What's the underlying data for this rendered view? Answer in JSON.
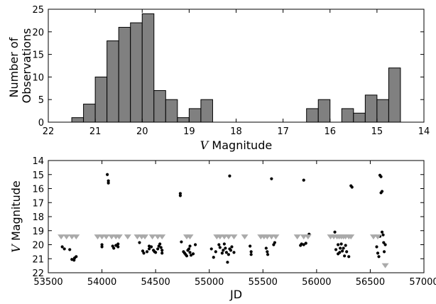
{
  "chart_data": [
    {
      "type": "bar",
      "subtype": "histogram",
      "xlabel": "V Magnitude",
      "xlabel_prefix": "V",
      "xlabel_suffix": " Magnitude",
      "ylabel_lines": [
        "Number of",
        "Observations"
      ],
      "xlim": [
        22,
        14
      ],
      "x_inverted": true,
      "ylim": [
        0,
        25
      ],
      "xticks": [
        22,
        21,
        20,
        19,
        18,
        17,
        16,
        15,
        14
      ],
      "yticks": [
        0,
        5,
        10,
        15,
        20,
        25
      ],
      "bar_color": "#808080",
      "bars": [
        {
          "left": 21.5,
          "right": 21.25,
          "value": 1
        },
        {
          "left": 21.25,
          "right": 21.0,
          "value": 4
        },
        {
          "left": 21.0,
          "right": 20.75,
          "value": 10
        },
        {
          "left": 20.75,
          "right": 20.5,
          "value": 18
        },
        {
          "left": 20.5,
          "right": 20.25,
          "value": 21
        },
        {
          "left": 20.25,
          "right": 20.0,
          "value": 22
        },
        {
          "left": 20.0,
          "right": 19.75,
          "value": 24
        },
        {
          "left": 19.75,
          "right": 19.5,
          "value": 7
        },
        {
          "left": 19.5,
          "right": 19.25,
          "value": 5
        },
        {
          "left": 19.25,
          "right": 19.0,
          "value": 1
        },
        {
          "left": 19.0,
          "right": 18.75,
          "value": 3
        },
        {
          "left": 18.75,
          "right": 18.5,
          "value": 5
        },
        {
          "left": 16.5,
          "right": 16.25,
          "value": 3
        },
        {
          "left": 16.25,
          "right": 16.0,
          "value": 5
        },
        {
          "left": 15.75,
          "right": 15.5,
          "value": 3
        },
        {
          "left": 15.5,
          "right": 15.25,
          "value": 2
        },
        {
          "left": 15.25,
          "right": 15.0,
          "value": 6
        },
        {
          "left": 15.0,
          "right": 14.75,
          "value": 5
        },
        {
          "left": 14.75,
          "right": 14.5,
          "value": 12
        }
      ]
    },
    {
      "type": "scatter",
      "xlabel": "JD",
      "ylabel": "V Magnitude",
      "ylabel_prefix": "V",
      "ylabel_suffix": " Magnitude",
      "xlim": [
        53500,
        57000
      ],
      "ylim": [
        22,
        14
      ],
      "y_inverted": true,
      "xticks": [
        53500,
        54000,
        54500,
        55000,
        55500,
        56000,
        56500,
        57000
      ],
      "yticks": [
        14,
        15,
        16,
        17,
        18,
        19,
        20,
        21,
        22
      ],
      "series": [
        {
          "marker": "point",
          "color": "#000000",
          "points": [
            [
              53630,
              20.15
            ],
            [
              53650,
              20.3
            ],
            [
              53700,
              20.35
            ],
            [
              53720,
              21.05
            ],
            [
              53740,
              21.1
            ],
            [
              53760,
              20.85
            ],
            [
              53745,
              20.95
            ],
            [
              54000,
              20.0
            ],
            [
              54000,
              20.15
            ],
            [
              54050,
              15.0
            ],
            [
              54060,
              15.45
            ],
            [
              54060,
              15.6
            ],
            [
              54100,
              20.1
            ],
            [
              54130,
              20.05
            ],
            [
              54110,
              20.25
            ],
            [
              54150,
              19.95
            ],
            [
              54150,
              20.15
            ],
            [
              54350,
              19.85
            ],
            [
              54380,
              20.45
            ],
            [
              54390,
              20.6
            ],
            [
              54420,
              20.5
            ],
            [
              54440,
              20.1
            ],
            [
              54440,
              20.3
            ],
            [
              54460,
              20.15
            ],
            [
              54480,
              20.4
            ],
            [
              54490,
              20.5
            ],
            [
              54500,
              20.55
            ],
            [
              54520,
              20.3
            ],
            [
              54530,
              20.1
            ],
            [
              54540,
              19.95
            ],
            [
              54550,
              20.2
            ],
            [
              54560,
              20.4
            ],
            [
              54560,
              20.6
            ],
            [
              54730,
              16.35
            ],
            [
              54730,
              16.5
            ],
            [
              54760,
              20.5
            ],
            [
              54770,
              20.6
            ],
            [
              54780,
              20.7
            ],
            [
              54790,
              20.8
            ],
            [
              54800,
              20.4
            ],
            [
              54810,
              20.3
            ],
            [
              54820,
              20.55
            ],
            [
              54830,
              20.75
            ],
            [
              54820,
              20.1
            ],
            [
              54850,
              20.65
            ],
            [
              54870,
              20.0
            ],
            [
              54740,
              19.8
            ],
            [
              55020,
              20.3
            ],
            [
              55040,
              20.9
            ],
            [
              55060,
              20.5
            ],
            [
              55090,
              20.0
            ],
            [
              55100,
              20.2
            ],
            [
              55120,
              20.6
            ],
            [
              55130,
              20.4
            ],
            [
              55140,
              19.95
            ],
            [
              55150,
              20.25
            ],
            [
              55160,
              20.55
            ],
            [
              55170,
              21.25
            ],
            [
              55180,
              20.7
            ],
            [
              55190,
              20.3
            ],
            [
              55200,
              20.4
            ],
            [
              55210,
              20.15
            ],
            [
              55230,
              20.55
            ],
            [
              55190,
              15.1
            ],
            [
              55380,
              20.1
            ],
            [
              55390,
              20.5
            ],
            [
              55390,
              20.7
            ],
            [
              55530,
              20.25
            ],
            [
              55540,
              20.5
            ],
            [
              55545,
              20.7
            ],
            [
              55580,
              15.3
            ],
            [
              55600,
              20.0
            ],
            [
              55610,
              19.85
            ],
            [
              55850,
              20.05
            ],
            [
              55860,
              19.95
            ],
            [
              55880,
              15.4
            ],
            [
              55880,
              20.0
            ],
            [
              55900,
              19.9
            ],
            [
              55930,
              19.25
            ],
            [
              56170,
              19.1
            ],
            [
              56180,
              20.35
            ],
            [
              56200,
              20.65
            ],
            [
              56220,
              20.25
            ],
            [
              56230,
              19.95
            ],
            [
              56240,
              20.45
            ],
            [
              56250,
              20.25
            ],
            [
              56260,
              20.8
            ],
            [
              56270,
              20.05
            ],
            [
              56280,
              20.5
            ],
            [
              56300,
              20.85
            ],
            [
              56320,
              15.8
            ],
            [
              56330,
              15.9
            ],
            [
              56200,
              20.0
            ],
            [
              56215,
              20.55
            ],
            [
              56560,
              20.15
            ],
            [
              56570,
              20.6
            ],
            [
              56580,
              20.85
            ],
            [
              56590,
              15.05
            ],
            [
              56600,
              15.15
            ],
            [
              56610,
              16.2
            ],
            [
              56600,
              16.3
            ],
            [
              56610,
              19.1
            ],
            [
              56620,
              19.3
            ],
            [
              56625,
              19.85
            ],
            [
              56630,
              20.5
            ],
            [
              56590,
              19.4
            ],
            [
              56640,
              20.0
            ]
          ]
        },
        {
          "marker": "triangle-down",
          "color": "#aaaaaa",
          "points": [
            [
              53620,
              19.45
            ],
            [
              53670,
              19.45
            ],
            [
              53720,
              19.45
            ],
            [
              53760,
              19.45
            ],
            [
              53960,
              19.45
            ],
            [
              54000,
              19.45
            ],
            [
              54040,
              19.45
            ],
            [
              54090,
              19.45
            ],
            [
              54130,
              19.45
            ],
            [
              54160,
              19.45
            ],
            [
              54240,
              19.45
            ],
            [
              54330,
              19.45
            ],
            [
              54370,
              19.45
            ],
            [
              54400,
              19.45
            ],
            [
              54470,
              19.45
            ],
            [
              54520,
              19.45
            ],
            [
              54560,
              19.45
            ],
            [
              54790,
              19.45
            ],
            [
              54820,
              19.45
            ],
            [
              55070,
              19.45
            ],
            [
              55100,
              19.45
            ],
            [
              55140,
              19.45
            ],
            [
              55180,
              19.45
            ],
            [
              55230,
              19.45
            ],
            [
              55330,
              19.45
            ],
            [
              55480,
              19.45
            ],
            [
              55510,
              19.45
            ],
            [
              55540,
              19.45
            ],
            [
              55580,
              19.45
            ],
            [
              55620,
              19.45
            ],
            [
              55820,
              19.45
            ],
            [
              55880,
              19.45
            ],
            [
              55920,
              19.45
            ],
            [
              56130,
              19.45
            ],
            [
              56160,
              19.45
            ],
            [
              56190,
              19.45
            ],
            [
              56210,
              19.45
            ],
            [
              56230,
              19.45
            ],
            [
              56250,
              19.45
            ],
            [
              56270,
              19.45
            ],
            [
              56300,
              19.45
            ],
            [
              56320,
              19.45
            ],
            [
              56530,
              19.45
            ],
            [
              56570,
              19.45
            ],
            [
              56640,
              21.5
            ]
          ]
        }
      ]
    }
  ]
}
